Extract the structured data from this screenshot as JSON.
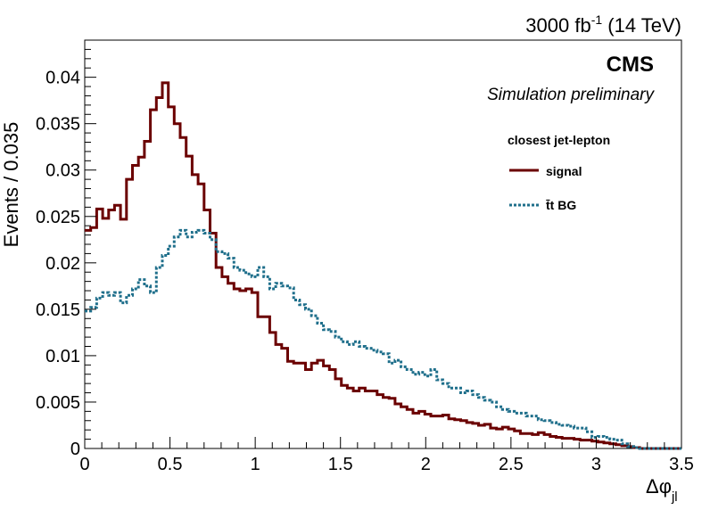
{
  "chart_data": {
    "type": "histogram-step",
    "title": "",
    "lumi_label": "3000 fb",
    "lumi_sup": "-1",
    "lumi_suffix": " (14 TeV)",
    "cms_label": "CMS",
    "cms_sublabel": "Simulation preliminary",
    "xlabel_symbol": "Δφ",
    "xlabel_sub": "jl",
    "ylabel": "Events / 0.035",
    "xlim": [
      0,
      3.5
    ],
    "ylim": [
      0,
      0.044
    ],
    "xticks": [
      0,
      0.5,
      1,
      1.5,
      2,
      2.5,
      3,
      3.5
    ],
    "xtick_labels": [
      "0",
      "0.5",
      "1",
      "1.5",
      "2",
      "2.5",
      "3",
      "3.5"
    ],
    "yticks": [
      0,
      0.005,
      0.01,
      0.015,
      0.02,
      0.025,
      0.03,
      0.035,
      0.04
    ],
    "ytick_labels": [
      "0",
      "0.005",
      "0.01",
      "0.015",
      "0.02",
      "0.025",
      "0.03",
      "0.035",
      "0.04"
    ],
    "bin_width": 0.035,
    "legend": {
      "title": "closest jet-lepton",
      "position": "top-right"
    },
    "series": [
      {
        "name": "signal",
        "color": "#6b0000",
        "style": "solid",
        "values": [
          0.0235,
          0.0238,
          0.0258,
          0.0248,
          0.0257,
          0.0262,
          0.0247,
          0.029,
          0.0305,
          0.0314,
          0.0331,
          0.0365,
          0.0378,
          0.0394,
          0.0368,
          0.035,
          0.0335,
          0.0315,
          0.0295,
          0.0285,
          0.0257,
          0.0232,
          0.0195,
          0.0185,
          0.0178,
          0.0172,
          0.017,
          0.0172,
          0.0168,
          0.0142,
          0.0142,
          0.0125,
          0.0112,
          0.0108,
          0.0094,
          0.0092,
          0.0092,
          0.0085,
          0.0092,
          0.0095,
          0.0089,
          0.0085,
          0.0075,
          0.0068,
          0.0065,
          0.0062,
          0.0065,
          0.0062,
          0.0062,
          0.0058,
          0.0055,
          0.0054,
          0.0048,
          0.0045,
          0.0042,
          0.0038,
          0.004,
          0.0037,
          0.0035,
          0.0035,
          0.0036,
          0.0032,
          0.0031,
          0.003,
          0.0028,
          0.0027,
          0.0025,
          0.0026,
          0.0022,
          0.0021,
          0.0023,
          0.0021,
          0.0019,
          0.0016,
          0.0016,
          0.0015,
          0.0017,
          0.0015,
          0.0013,
          0.0012,
          0.0011,
          0.0011,
          0.001,
          0.0009,
          0.0009,
          0.0008,
          0.0007,
          0.0006,
          0.0005,
          0.0004,
          0.0003,
          0.0002,
          0.0001,
          0,
          0,
          0,
          0,
          0,
          0,
          0
        ]
      },
      {
        "name": "t̄t BG",
        "color": "#1f6f8b",
        "style": "dotted",
        "values": [
          0.0148,
          0.0152,
          0.0162,
          0.0168,
          0.0165,
          0.0168,
          0.0157,
          0.0165,
          0.0172,
          0.0182,
          0.0175,
          0.0168,
          0.0195,
          0.0208,
          0.0218,
          0.0228,
          0.0235,
          0.0228,
          0.0233,
          0.0235,
          0.0232,
          0.0225,
          0.0212,
          0.021,
          0.0205,
          0.0195,
          0.0192,
          0.0188,
          0.0185,
          0.0195,
          0.0185,
          0.0172,
          0.0178,
          0.0175,
          0.0173,
          0.016,
          0.0155,
          0.015,
          0.0143,
          0.0135,
          0.0128,
          0.0126,
          0.012,
          0.0115,
          0.0112,
          0.0115,
          0.011,
          0.0108,
          0.0106,
          0.0104,
          0.0102,
          0.0092,
          0.0095,
          0.0088,
          0.0085,
          0.008,
          0.0082,
          0.0078,
          0.0085,
          0.0074,
          0.007,
          0.0065,
          0.0065,
          0.006,
          0.0062,
          0.0058,
          0.0055,
          0.0052,
          0.005,
          0.0045,
          0.0042,
          0.004,
          0.0038,
          0.0038,
          0.0035,
          0.0035,
          0.0031,
          0.003,
          0.0028,
          0.0026,
          0.0025,
          0.0024,
          0.0022,
          0.0022,
          0.0018,
          0.0012,
          0.0013,
          0.0012,
          0.001,
          0.0009,
          0.0005,
          0.0002,
          0.0001,
          0,
          0,
          0,
          0,
          0,
          0,
          0
        ]
      }
    ]
  }
}
